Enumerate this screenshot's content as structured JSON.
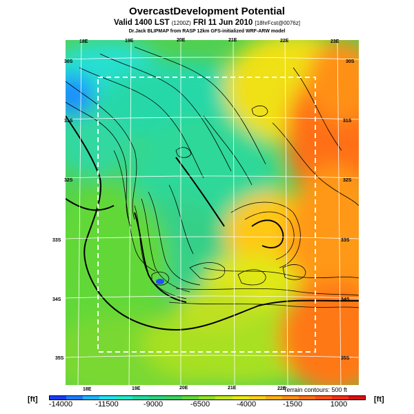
{
  "title": "OvercastDevelopment Potential",
  "subtitle_main": "Valid 1400 LST",
  "subtitle_small_1": "(1200Z)",
  "subtitle_date": "FRI 11 Jun 2010",
  "subtitle_small_2": "[18hrFcst@0076z]",
  "credit": "Dr.Jack BLIPMAP from RASP 12km GFS-initialized WRF-ARW model",
  "terrain_note": "Terrain contours: 500 ft",
  "unit_label": "[ft]",
  "top_ticks": [
    "18E",
    "19E",
    "20E",
    "21E",
    "22E",
    "23E"
  ],
  "bottom_ticks": [
    "18E",
    "19E",
    "20E",
    "21E",
    "22E"
  ],
  "left_ticks": [
    "30S",
    "31S",
    "32S",
    "33S",
    "34S",
    "35S"
  ],
  "right_ticks": [
    "30S",
    "31S",
    "32S",
    "33S",
    "34S",
    "35S"
  ],
  "colorbar": {
    "labels": [
      "-14000",
      "-11500",
      "-9000",
      "-6500",
      "-4000",
      "-1500",
      "1000"
    ],
    "colors": [
      "#1a3cf0",
      "#1f78ff",
      "#1fb4ff",
      "#20e0f0",
      "#22e8c8",
      "#25d8a0",
      "#2ed080",
      "#3cd060",
      "#60d83c",
      "#90e028",
      "#c0e820",
      "#e8e818",
      "#ffd018",
      "#ffb018",
      "#ff9018",
      "#ff7018",
      "#ff5018",
      "#f03018",
      "#d81010"
    ]
  },
  "chart_data": {
    "type": "heatmap",
    "title": "OvercastDevelopment Potential",
    "variable": "Overcast development potential",
    "units": "ft",
    "color_scale_range": [
      -14000,
      1000
    ],
    "colorbar_ticks": [
      -14000,
      -11500,
      -9000,
      -6500,
      -4000,
      -1500,
      1000
    ],
    "x_axis": "Longitude",
    "y_axis": "Latitude",
    "lon_ticks": [
      "18E",
      "19E",
      "20E",
      "21E",
      "22E",
      "23E"
    ],
    "lat_ticks": [
      "30S",
      "31S",
      "32S",
      "33S",
      "34S",
      "35S"
    ],
    "contour_interval": "500 ft",
    "description_regions": [
      {
        "region": "west/northwest",
        "value_range": [
          -11500,
          -9000
        ]
      },
      {
        "region": "central",
        "value_range": [
          -9000,
          -6500
        ]
      },
      {
        "region": "east/northeast",
        "value_range": [
          -1500,
          1000
        ]
      },
      {
        "region": "south coast",
        "value_range": [
          -6500,
          -4000
        ]
      }
    ]
  }
}
